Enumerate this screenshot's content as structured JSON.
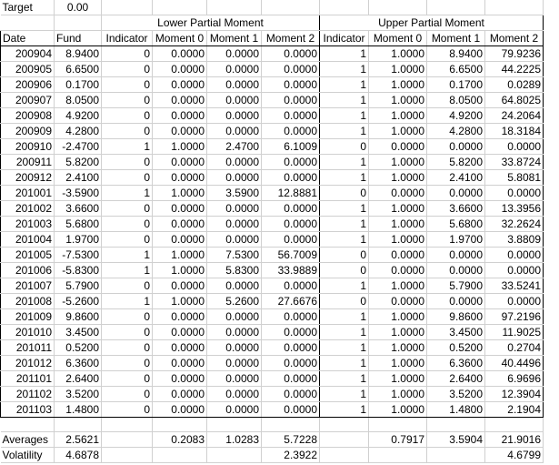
{
  "target": {
    "label": "Target",
    "value": "0.00"
  },
  "groups": {
    "lower": "Lower Partial Moment",
    "upper": "Upper Partial Moment"
  },
  "headers": [
    "Date",
    "Fund",
    "Indicator",
    "Moment 0",
    "Moment 1",
    "Moment 2",
    "Indicator",
    "Moment 0",
    "Moment 1",
    "Moment 2"
  ],
  "rows": [
    [
      "200904",
      "8.9400",
      "0",
      "0.0000",
      "0.0000",
      "0.0000",
      "1",
      "1.0000",
      "8.9400",
      "79.9236"
    ],
    [
      "200905",
      "6.6500",
      "0",
      "0.0000",
      "0.0000",
      "0.0000",
      "1",
      "1.0000",
      "6.6500",
      "44.2225"
    ],
    [
      "200906",
      "0.1700",
      "0",
      "0.0000",
      "0.0000",
      "0.0000",
      "1",
      "1.0000",
      "0.1700",
      "0.0289"
    ],
    [
      "200907",
      "8.0500",
      "0",
      "0.0000",
      "0.0000",
      "0.0000",
      "1",
      "1.0000",
      "8.0500",
      "64.8025"
    ],
    [
      "200908",
      "4.9200",
      "0",
      "0.0000",
      "0.0000",
      "0.0000",
      "1",
      "1.0000",
      "4.9200",
      "24.2064"
    ],
    [
      "200909",
      "4.2800",
      "0",
      "0.0000",
      "0.0000",
      "0.0000",
      "1",
      "1.0000",
      "4.2800",
      "18.3184"
    ],
    [
      "200910",
      "-2.4700",
      "1",
      "1.0000",
      "2.4700",
      "6.1009",
      "0",
      "0.0000",
      "0.0000",
      "0.0000"
    ],
    [
      "200911",
      "5.8200",
      "0",
      "0.0000",
      "0.0000",
      "0.0000",
      "1",
      "1.0000",
      "5.8200",
      "33.8724"
    ],
    [
      "200912",
      "2.4100",
      "0",
      "0.0000",
      "0.0000",
      "0.0000",
      "1",
      "1.0000",
      "2.4100",
      "5.8081"
    ],
    [
      "201001",
      "-3.5900",
      "1",
      "1.0000",
      "3.5900",
      "12.8881",
      "0",
      "0.0000",
      "0.0000",
      "0.0000"
    ],
    [
      "201002",
      "3.6600",
      "0",
      "0.0000",
      "0.0000",
      "0.0000",
      "1",
      "1.0000",
      "3.6600",
      "13.3956"
    ],
    [
      "201003",
      "5.6800",
      "0",
      "0.0000",
      "0.0000",
      "0.0000",
      "1",
      "1.0000",
      "5.6800",
      "32.2624"
    ],
    [
      "201004",
      "1.9700",
      "0",
      "0.0000",
      "0.0000",
      "0.0000",
      "1",
      "1.0000",
      "1.9700",
      "3.8809"
    ],
    [
      "201005",
      "-7.5300",
      "1",
      "1.0000",
      "7.5300",
      "56.7009",
      "0",
      "0.0000",
      "0.0000",
      "0.0000"
    ],
    [
      "201006",
      "-5.8300",
      "1",
      "1.0000",
      "5.8300",
      "33.9889",
      "0",
      "0.0000",
      "0.0000",
      "0.0000"
    ],
    [
      "201007",
      "5.7900",
      "0",
      "0.0000",
      "0.0000",
      "0.0000",
      "1",
      "1.0000",
      "5.7900",
      "33.5241"
    ],
    [
      "201008",
      "-5.2600",
      "1",
      "1.0000",
      "5.2600",
      "27.6676",
      "0",
      "0.0000",
      "0.0000",
      "0.0000"
    ],
    [
      "201009",
      "9.8600",
      "0",
      "0.0000",
      "0.0000",
      "0.0000",
      "1",
      "1.0000",
      "9.8600",
      "97.2196"
    ],
    [
      "201010",
      "3.4500",
      "0",
      "0.0000",
      "0.0000",
      "0.0000",
      "1",
      "1.0000",
      "3.4500",
      "11.9025"
    ],
    [
      "201011",
      "0.5200",
      "0",
      "0.0000",
      "0.0000",
      "0.0000",
      "1",
      "1.0000",
      "0.5200",
      "0.2704"
    ],
    [
      "201012",
      "6.3600",
      "0",
      "0.0000",
      "0.0000",
      "0.0000",
      "1",
      "1.0000",
      "6.3600",
      "40.4496"
    ],
    [
      "201101",
      "2.6400",
      "0",
      "0.0000",
      "0.0000",
      "0.0000",
      "1",
      "1.0000",
      "2.6400",
      "6.9696"
    ],
    [
      "201102",
      "3.5200",
      "0",
      "0.0000",
      "0.0000",
      "0.0000",
      "1",
      "1.0000",
      "3.5200",
      "12.3904"
    ],
    [
      "201103",
      "1.4800",
      "0",
      "0.0000",
      "0.0000",
      "0.0000",
      "1",
      "1.0000",
      "1.4800",
      "2.1904"
    ]
  ],
  "averages": {
    "label": "Averages",
    "fund": "2.5621",
    "lpm0": "0.2083",
    "lpm1": "1.0283",
    "lpm2": "5.7228",
    "upm0": "0.7917",
    "upm1": "3.5904",
    "upm2": "21.9016"
  },
  "volatility": {
    "label": "Volatility",
    "fund": "4.6878",
    "lpm2": "2.3922",
    "upm2": "4.6799"
  }
}
